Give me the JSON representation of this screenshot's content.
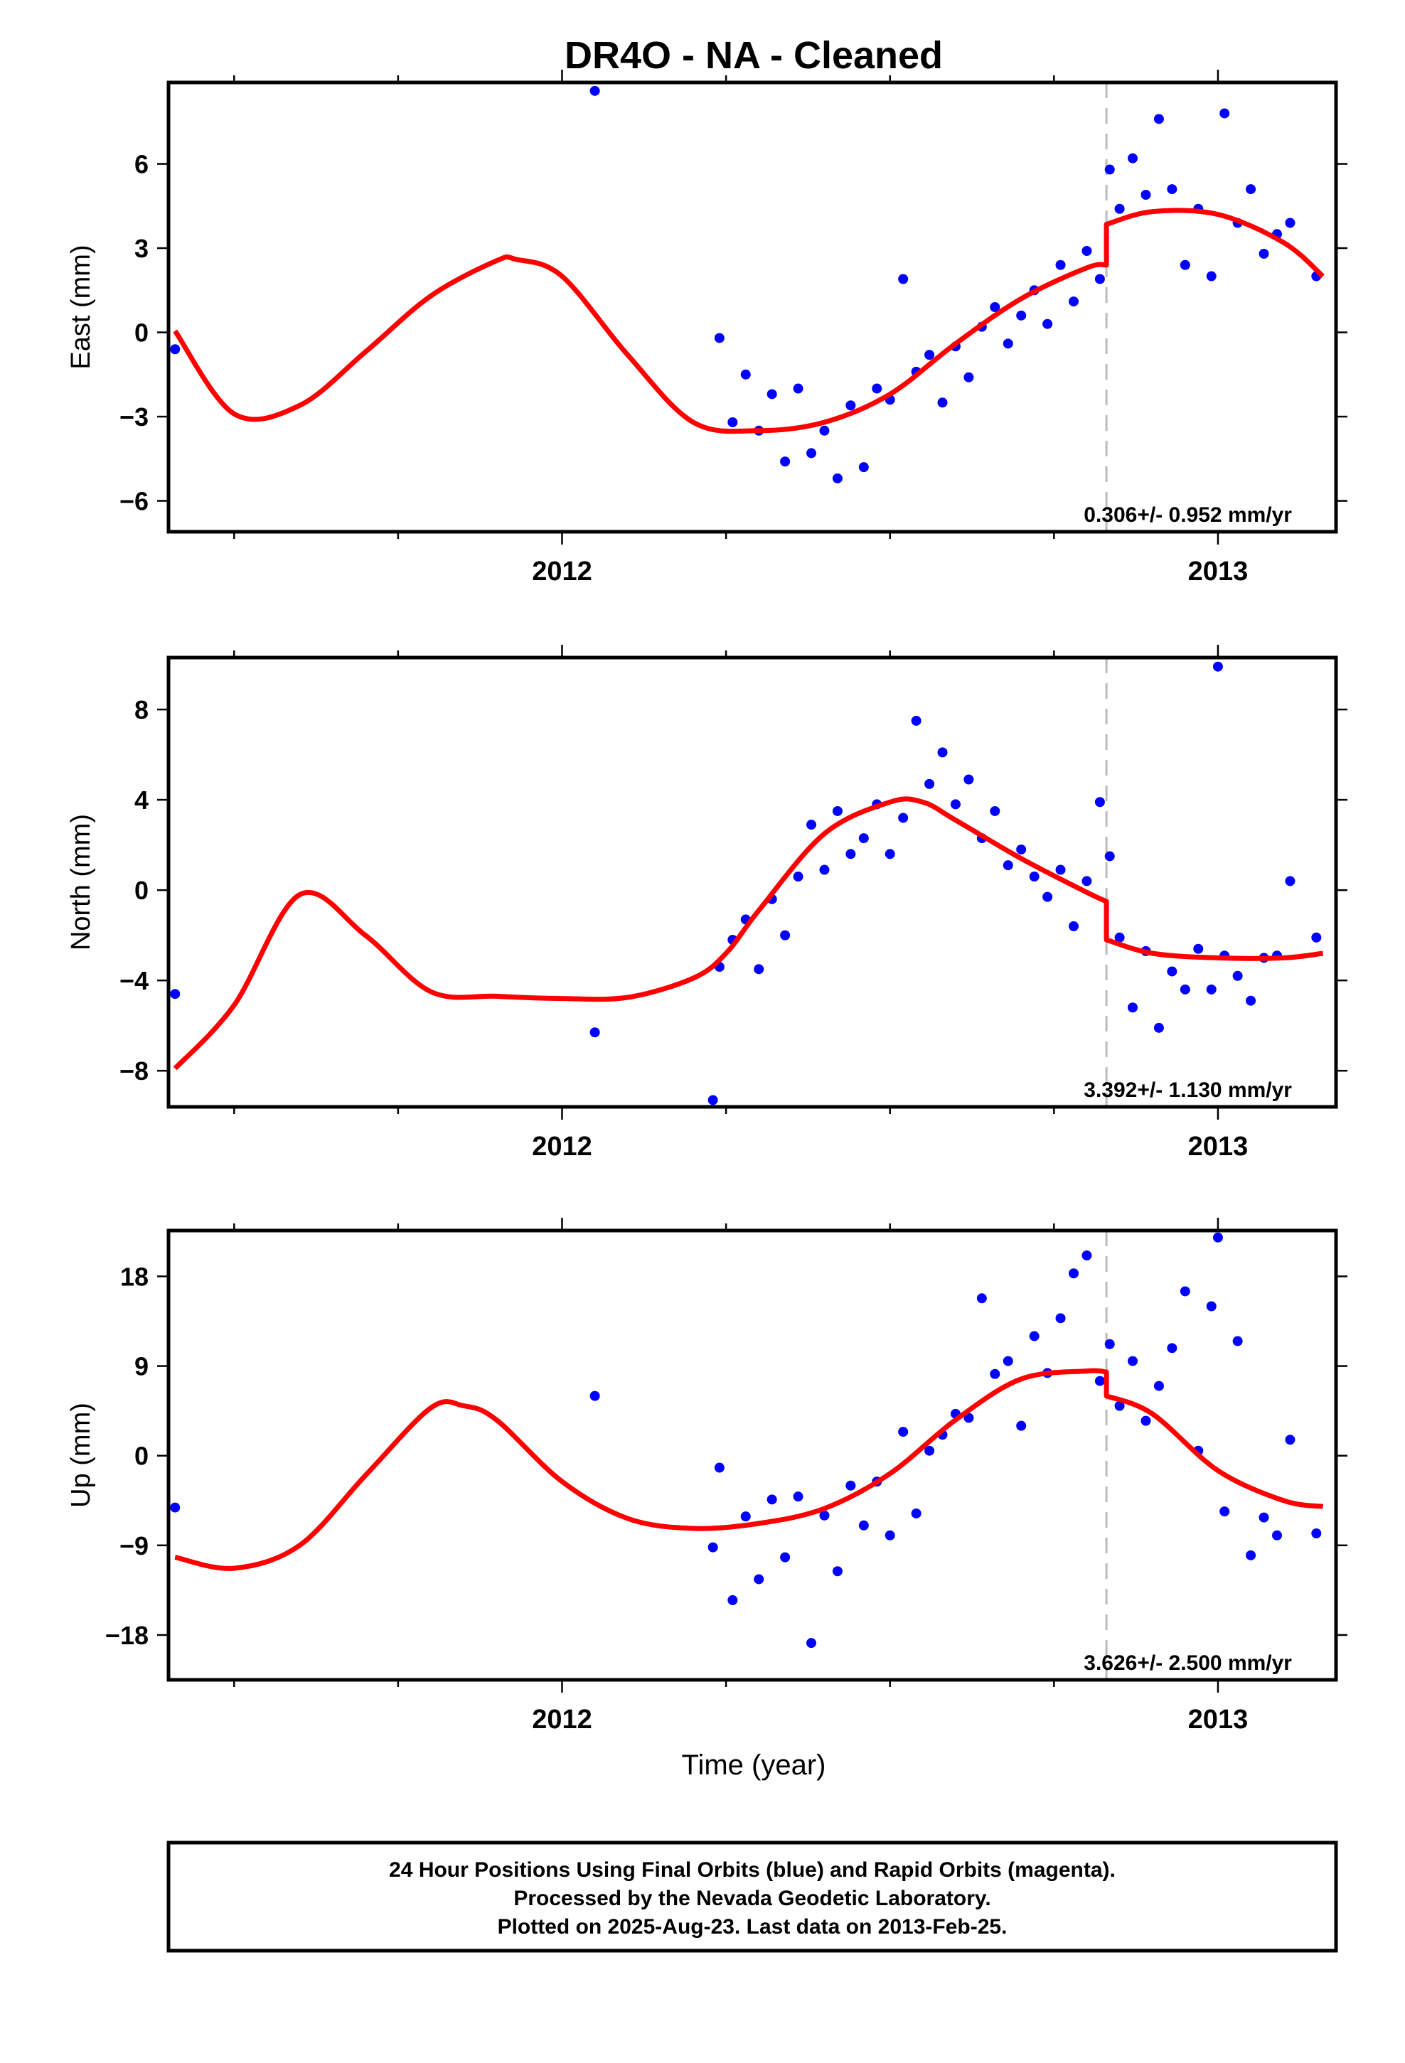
{
  "title": "DR4O  - NA - Cleaned",
  "xlabel": "Time (year)",
  "footer": {
    "line1": "24 Hour Positions Using Final Orbits (blue) and Rapid Orbits (magenta).",
    "line2": "Processed by the Nevada Geodetic Laboratory.",
    "line3": "Plotted on 2025-Aug-23. Last data on 2013-Feb-25."
  },
  "colors": {
    "data": "#0000ff",
    "model": "#ff0000",
    "offset": "#bbbbbb",
    "frame": "#000000"
  },
  "chart_data": [
    {
      "type": "scatter",
      "name": "east",
      "ylabel": "East (mm)",
      "xlim": [
        2011.4,
        2013.18
      ],
      "ylim": [
        -7.1,
        8.9
      ],
      "yticks": [
        -6,
        -3,
        0,
        3,
        6
      ],
      "xticks": [
        2012,
        2013
      ],
      "offset_x": 2012.83,
      "rate_label": "0.306+/- 0.952 mm/yr",
      "x": [
        2011.41,
        2012.05,
        2012.24,
        2012.26,
        2012.28,
        2012.3,
        2012.32,
        2012.34,
        2012.36,
        2012.38,
        2012.4,
        2012.42,
        2012.44,
        2012.46,
        2012.48,
        2012.5,
        2012.52,
        2012.54,
        2012.56,
        2012.58,
        2012.6,
        2012.62,
        2012.64,
        2012.66,
        2012.68,
        2012.7,
        2012.72,
        2012.74,
        2012.76,
        2012.78,
        2012.8,
        2012.82,
        2012.835,
        2012.85,
        2012.87,
        2012.89,
        2012.91,
        2012.93,
        2012.95,
        2012.97,
        2012.99,
        2013.01,
        2013.03,
        2013.05,
        2013.07,
        2013.09,
        2013.11,
        2013.15
      ],
      "y": [
        -0.6,
        8.6,
        -0.2,
        -3.2,
        -1.5,
        -3.5,
        -2.2,
        -4.6,
        -2.0,
        -4.3,
        -3.5,
        -5.2,
        -2.6,
        -4.8,
        -2.0,
        -2.4,
        1.9,
        -1.4,
        -0.8,
        -2.5,
        -0.5,
        -1.6,
        0.2,
        0.9,
        -0.4,
        0.6,
        1.5,
        0.3,
        2.4,
        1.1,
        2.9,
        1.9,
        5.8,
        4.4,
        6.2,
        4.9,
        7.6,
        5.1,
        2.4,
        4.4,
        2.0,
        7.8,
        3.9,
        5.1,
        2.8,
        3.5,
        3.9,
        2.0
      ],
      "model_x": [
        2011.41,
        2011.5,
        2011.6,
        2011.7,
        2011.8,
        2011.9,
        2011.93,
        2012.0,
        2012.1,
        2012.2,
        2012.3,
        2012.4,
        2012.5,
        2012.6,
        2012.7,
        2012.8,
        2012.83,
        2012.83,
        2012.9,
        2013.0,
        2013.1,
        2013.16
      ],
      "model_y": [
        0.05,
        -2.9,
        -2.6,
        -0.7,
        1.3,
        2.55,
        2.6,
        2.0,
        -0.8,
        -3.2,
        -3.5,
        -3.2,
        -2.2,
        -0.4,
        1.2,
        2.3,
        2.4,
        3.85,
        4.3,
        4.2,
        3.2,
        2.0
      ]
    },
    {
      "type": "scatter",
      "name": "north",
      "ylabel": "North (mm)",
      "xlim": [
        2011.4,
        2013.18
      ],
      "ylim": [
        -9.6,
        10.3
      ],
      "yticks": [
        -8,
        -4,
        0,
        4,
        8
      ],
      "xticks": [
        2012,
        2013
      ],
      "offset_x": 2012.83,
      "rate_label": "3.392+/- 1.130 mm/yr",
      "x": [
        2011.41,
        2012.05,
        2012.23,
        2012.24,
        2012.26,
        2012.28,
        2012.3,
        2012.32,
        2012.34,
        2012.36,
        2012.38,
        2012.4,
        2012.42,
        2012.44,
        2012.46,
        2012.48,
        2012.5,
        2012.52,
        2012.54,
        2012.56,
        2012.58,
        2012.6,
        2012.62,
        2012.64,
        2012.66,
        2012.68,
        2012.7,
        2012.72,
        2012.74,
        2012.76,
        2012.78,
        2012.8,
        2012.82,
        2012.835,
        2012.85,
        2012.87,
        2012.89,
        2012.91,
        2012.93,
        2012.95,
        2012.97,
        2012.99,
        2013.0,
        2013.01,
        2013.03,
        2013.05,
        2013.07,
        2013.09,
        2013.11,
        2013.15
      ],
      "y": [
        -4.6,
        -6.3,
        -9.3,
        -3.4,
        -2.2,
        -1.3,
        -3.5,
        -0.4,
        -2.0,
        0.6,
        2.9,
        0.9,
        3.5,
        1.6,
        2.3,
        3.8,
        1.6,
        3.2,
        7.5,
        4.7,
        6.1,
        3.8,
        4.9,
        2.3,
        3.5,
        1.1,
        1.8,
        0.6,
        -0.3,
        0.9,
        -1.6,
        0.4,
        3.9,
        1.5,
        -2.1,
        -5.2,
        -2.7,
        -6.1,
        -3.6,
        -4.4,
        -2.6,
        -4.4,
        9.9,
        -2.9,
        -3.8,
        -4.9,
        -3.0,
        -2.9,
        0.4,
        -2.1
      ],
      "model_x": [
        2011.41,
        2011.5,
        2011.6,
        2011.7,
        2011.8,
        2011.9,
        2012.0,
        2012.1,
        2012.2,
        2012.25,
        2012.3,
        2012.4,
        2012.5,
        2012.55,
        2012.6,
        2012.7,
        2012.8,
        2012.83,
        2012.83,
        2012.9,
        2013.0,
        2013.1,
        2013.16
      ],
      "model_y": [
        -7.9,
        -5.1,
        -0.2,
        -2.0,
        -4.5,
        -4.7,
        -4.8,
        -4.75,
        -3.9,
        -2.8,
        -0.9,
        2.5,
        3.9,
        3.9,
        3.1,
        1.4,
        -0.1,
        -0.5,
        -2.2,
        -2.8,
        -3.0,
        -3.0,
        -2.8
      ]
    },
    {
      "type": "scatter",
      "name": "up",
      "ylabel": "Up (mm)",
      "xlim": [
        2011.4,
        2013.18
      ],
      "ylim": [
        -22.5,
        22.6
      ],
      "yticks": [
        -18,
        -9,
        0,
        9,
        18
      ],
      "xticks": [
        2012,
        2013
      ],
      "offset_x": 2012.83,
      "rate_label": "3.626+/- 2.500 mm/yr",
      "x": [
        2011.41,
        2012.05,
        2012.23,
        2012.24,
        2012.26,
        2012.28,
        2012.3,
        2012.32,
        2012.34,
        2012.36,
        2012.38,
        2012.4,
        2012.42,
        2012.44,
        2012.46,
        2012.48,
        2012.5,
        2012.52,
        2012.54,
        2012.56,
        2012.58,
        2012.6,
        2012.62,
        2012.64,
        2012.66,
        2012.68,
        2012.7,
        2012.72,
        2012.74,
        2012.76,
        2012.78,
        2012.8,
        2012.82,
        2012.835,
        2012.85,
        2012.87,
        2012.89,
        2012.91,
        2012.93,
        2012.95,
        2012.97,
        2012.99,
        2013.0,
        2013.01,
        2013.03,
        2013.05,
        2013.07,
        2013.09,
        2013.11,
        2013.15
      ],
      "y": [
        -5.2,
        6.0,
        -9.2,
        -1.2,
        -14.5,
        -6.1,
        -12.4,
        -4.4,
        -10.2,
        -4.1,
        -18.8,
        -6.0,
        -11.6,
        -3.0,
        -7.0,
        -2.6,
        -8.0,
        2.4,
        -5.8,
        0.5,
        2.1,
        4.2,
        3.8,
        15.8,
        8.2,
        9.5,
        3.0,
        12.0,
        8.3,
        13.8,
        18.3,
        20.1,
        7.5,
        11.2,
        5.0,
        9.5,
        3.5,
        7.0,
        10.8,
        16.5,
        0.5,
        15.0,
        21.9,
        -5.6,
        11.5,
        -10.0,
        -6.2,
        -8.0,
        1.6,
        -7.8
      ],
      "model_x": [
        2011.41,
        2011.5,
        2011.6,
        2011.7,
        2011.8,
        2011.85,
        2011.9,
        2012.0,
        2012.1,
        2012.2,
        2012.3,
        2012.4,
        2012.5,
        2012.6,
        2012.7,
        2012.8,
        2012.83,
        2012.83,
        2012.9,
        2013.0,
        2013.1,
        2013.16
      ],
      "model_y": [
        -10.2,
        -11.3,
        -9.0,
        -2.0,
        4.8,
        5.0,
        3.6,
        -2.6,
        -6.3,
        -7.3,
        -6.8,
        -5.3,
        -1.8,
        3.6,
        7.7,
        8.5,
        8.4,
        6.0,
        4.2,
        -1.5,
        -4.5,
        -5.1
      ]
    }
  ]
}
